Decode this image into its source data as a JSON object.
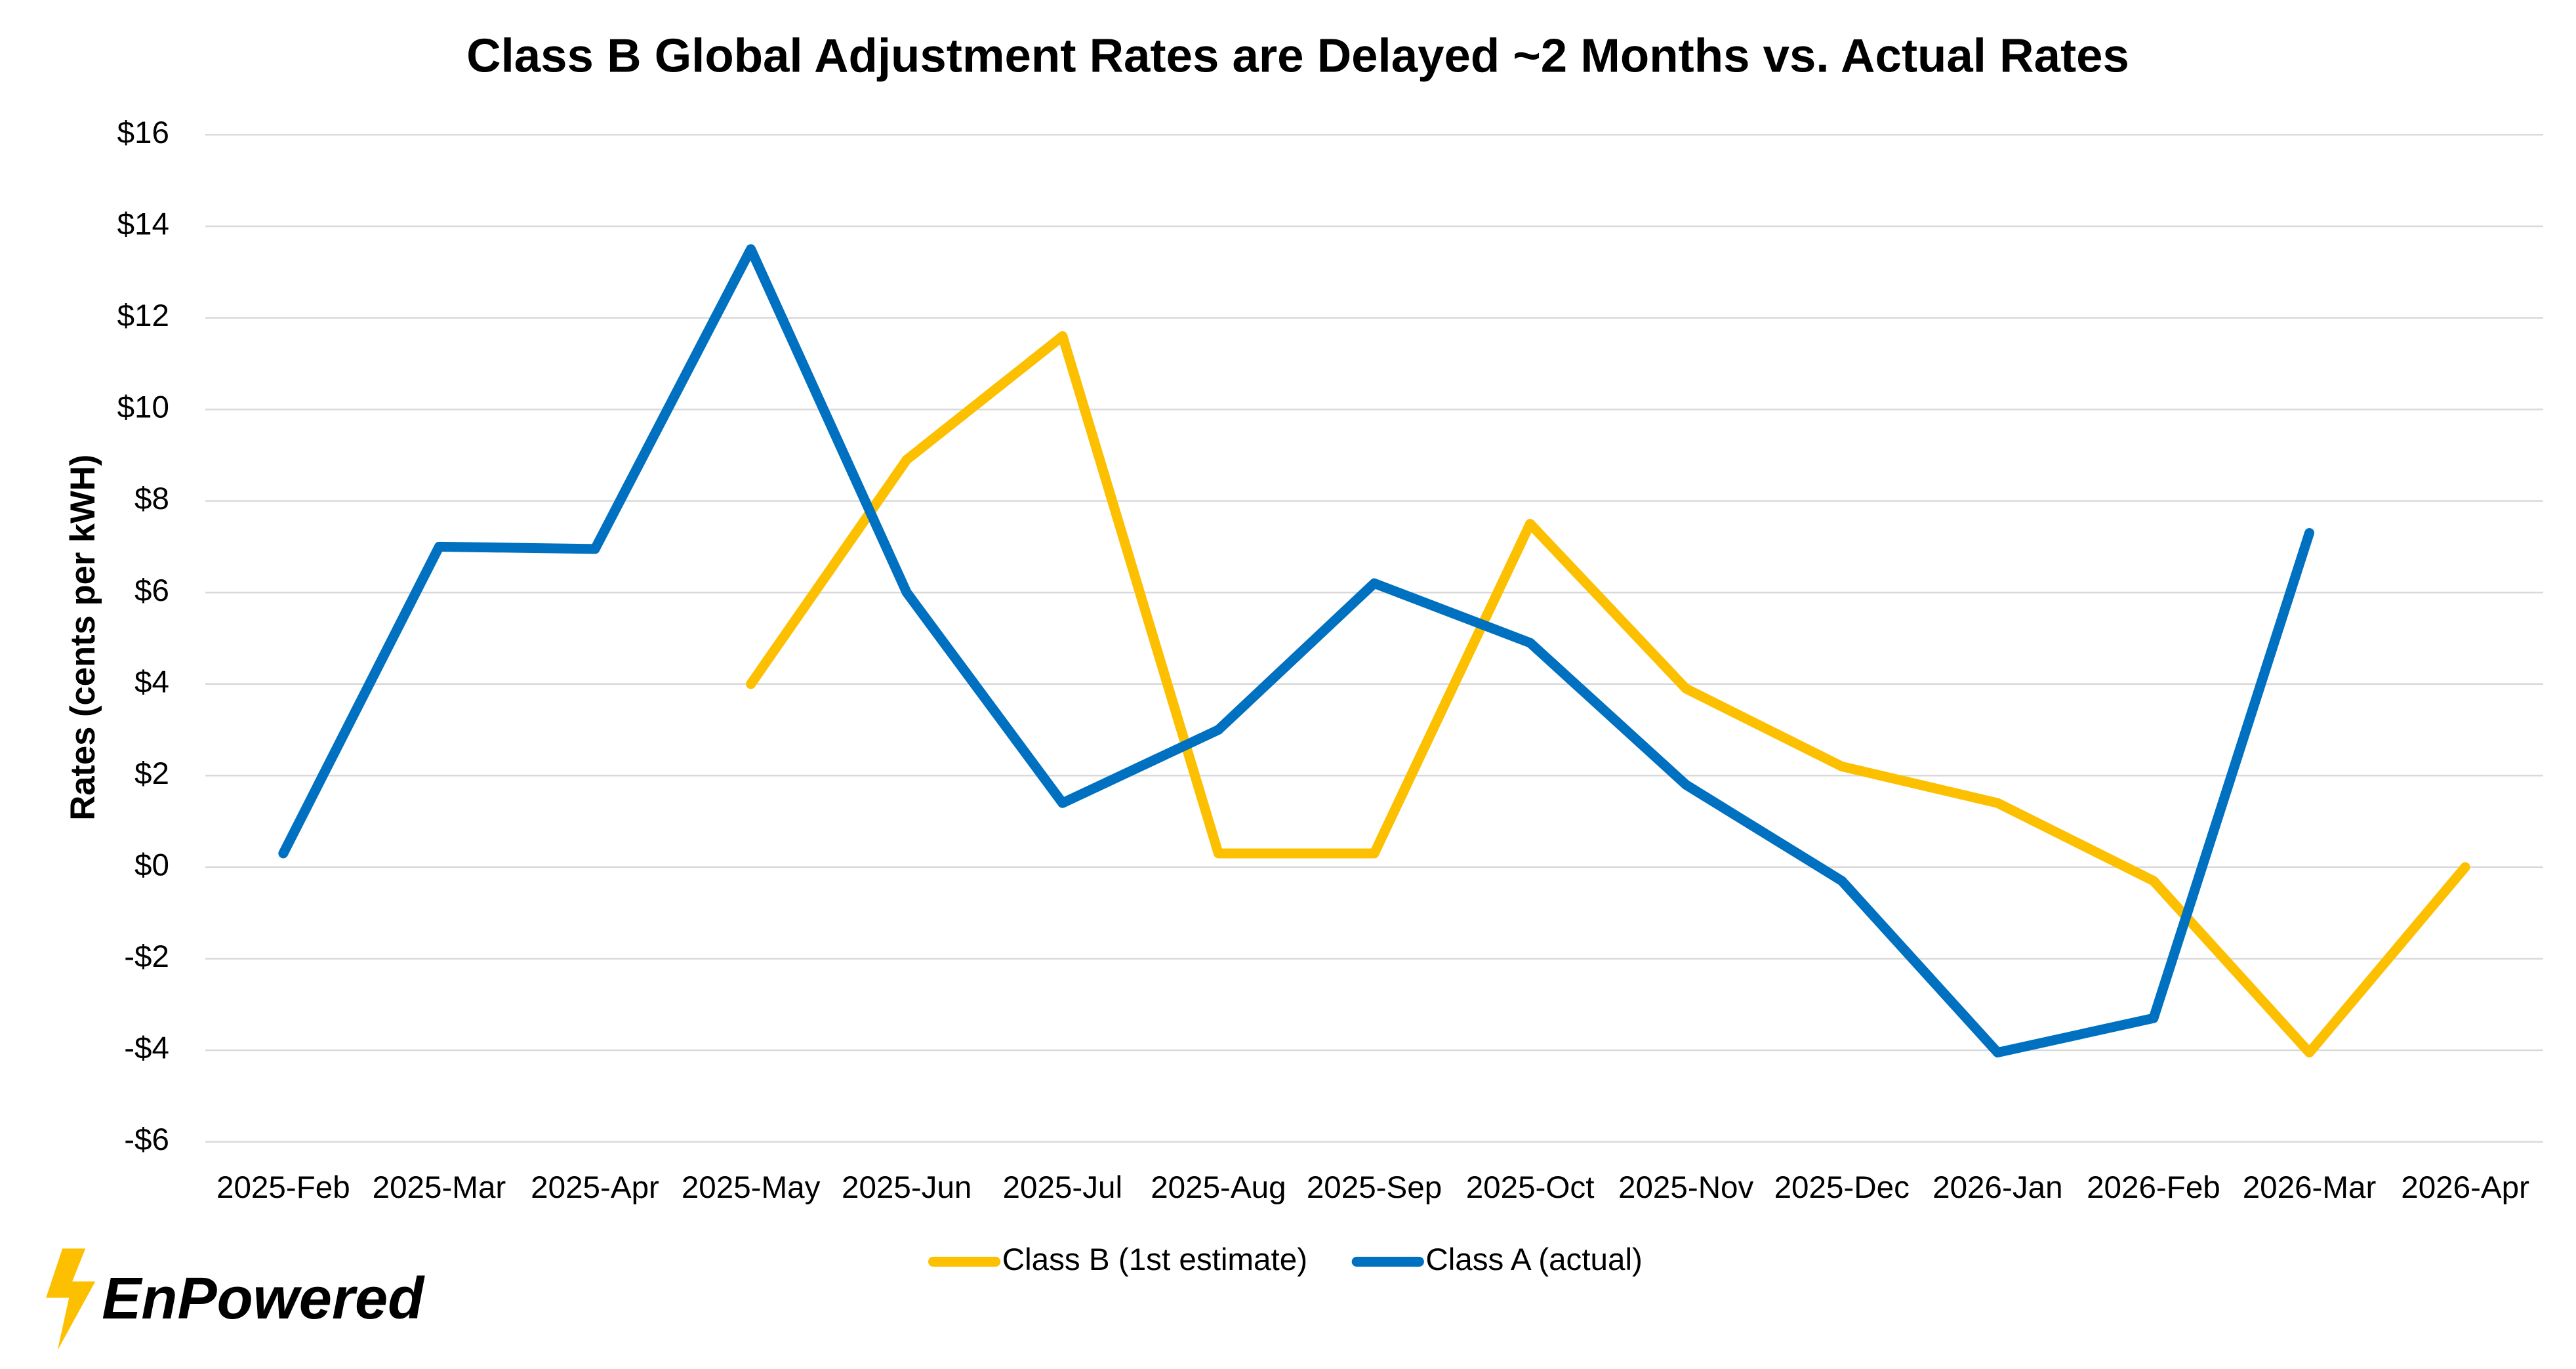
{
  "chart_data": {
    "type": "line",
    "title": "Class B Global Adjustment Rates are Delayed ~2 Months vs. Actual Rates",
    "y_label": "Rates (cents per kWH)",
    "categories": [
      "2025-Feb",
      "2025-Mar",
      "2025-Apr",
      "2025-May",
      "2025-Jun",
      "2025-Jul",
      "2025-Aug",
      "2025-Sep",
      "2025-Oct",
      "2025-Nov",
      "2025-Dec",
      "2026-Jan",
      "2026-Feb",
      "2026-Mar",
      "2026-Apr"
    ],
    "series": [
      {
        "name": "Class B (1st estimate)",
        "color": "#fcc000",
        "values": [
          null,
          null,
          null,
          4.0,
          8.9,
          11.6,
          0.3,
          0.3,
          7.5,
          3.9,
          2.2,
          1.4,
          -0.3,
          -4.05,
          0.0
        ]
      },
      {
        "name": "Class A (actual)",
        "color": "#0070c0",
        "values": [
          0.3,
          7.0,
          6.95,
          13.5,
          6.0,
          1.4,
          3.0,
          6.2,
          4.9,
          1.8,
          -0.3,
          -4.05,
          -3.3,
          7.3,
          null
        ]
      }
    ],
    "ylim": [
      -6,
      16
    ],
    "yticks": [
      {
        "value": -6,
        "label": "-$6"
      },
      {
        "value": -4,
        "label": "-$4"
      },
      {
        "value": -2,
        "label": "-$2"
      },
      {
        "value": 0,
        "label": "$0"
      },
      {
        "value": 2,
        "label": "$2"
      },
      {
        "value": 4,
        "label": "$4"
      },
      {
        "value": 6,
        "label": "$6"
      },
      {
        "value": 8,
        "label": "$8"
      },
      {
        "value": 10,
        "label": "$10"
      },
      {
        "value": 12,
        "label": "$12"
      },
      {
        "value": 14,
        "label": "$14"
      },
      {
        "value": 16,
        "label": "$16"
      }
    ],
    "grid": true,
    "legend": "bottom"
  },
  "brand": "EnPowered"
}
